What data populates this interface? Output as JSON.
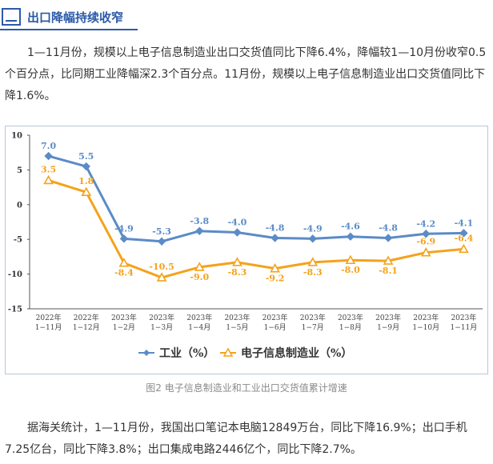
{
  "section": {
    "title": "出口降幅持续收窄"
  },
  "paragraphs": {
    "p1": "1—11月份，规模以上电子信息制造业出口交货值同比下降6.4%，降幅较1—10月份收窄0.5个百分点，比同期工业降幅深2.3个百分点。11月份，规模以上电子信息制造业出口交货值同比下降1.6%。",
    "p2": "据海关统计，1—11月份，我国出口笔记本电脑12849万台，同比下降16.9%；出口手机7.25亿台，同比下降3.8%；出口集成电路2446亿个，同比下降2.7%。"
  },
  "caption": "图2 电子信息制造业和工业出口交货值累计增速",
  "colors": {
    "industry": "#5b8bc7",
    "electronics": "#f5a21b",
    "accent": "#2b5aa8"
  },
  "chart_data": {
    "type": "line",
    "title": "",
    "xlabel": "",
    "ylabel": "",
    "ylim": [
      -15,
      10
    ],
    "yticks": [
      10,
      5,
      0,
      -5,
      -10,
      -15
    ],
    "grid": false,
    "legend_position": "bottom",
    "categories": [
      [
        "2022年",
        "1−11月"
      ],
      [
        "2022年",
        "1−12月"
      ],
      [
        "2023年",
        "1−2月"
      ],
      [
        "2023年",
        "1−3月"
      ],
      [
        "2023年",
        "1−4月"
      ],
      [
        "2023年",
        "1−5月"
      ],
      [
        "2023年",
        "1−6月"
      ],
      [
        "2023年",
        "1−7月"
      ],
      [
        "2023年",
        "1−8月"
      ],
      [
        "2023年",
        "1−9月"
      ],
      [
        "2023年",
        "1−10月"
      ],
      [
        "2023年",
        "1−11月"
      ]
    ],
    "series": [
      {
        "name": "工业（%）",
        "color": "#5b8bc7",
        "marker": "diamond",
        "values": [
          7.0,
          5.5,
          -4.9,
          -5.3,
          -3.8,
          -4.0,
          -4.8,
          -4.9,
          -4.6,
          -4.8,
          -4.2,
          -4.1
        ],
        "labels": [
          "7.0",
          "5.5",
          "-4.9",
          "-5.3",
          "-3.8",
          "-4.0",
          "-4.8",
          "-4.9",
          "-4.6",
          "-4.8",
          "-4.2",
          "-4.1"
        ]
      },
      {
        "name": "电子信息制造业（%）",
        "color": "#f5a21b",
        "marker": "triangle",
        "values": [
          3.5,
          1.8,
          -8.4,
          -10.5,
          -9.0,
          -8.3,
          -9.2,
          -8.3,
          -8.0,
          -8.1,
          -6.9,
          -6.4
        ],
        "labels": [
          "3.5",
          "1.8",
          "-8.4",
          "-10.5",
          "-9.0",
          "-8.3",
          "-9.2",
          "-8.3",
          "-8.0",
          "-8.1",
          "-6.9",
          "-6.4"
        ]
      }
    ]
  }
}
